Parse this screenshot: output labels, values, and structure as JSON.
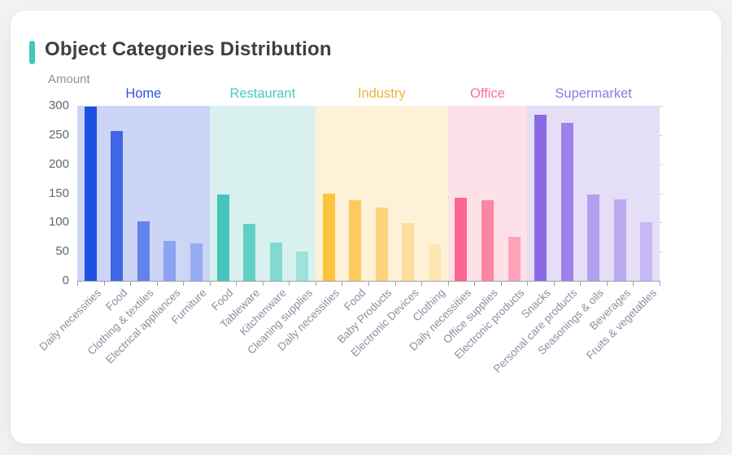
{
  "card": {
    "title": "Object Categories Distribution",
    "accent_color": "#3fc8bc"
  },
  "chart_data": {
    "type": "bar",
    "title": "Object Categories Distribution",
    "xlabel": "",
    "ylabel": "Amount",
    "ylim": [
      0,
      300
    ],
    "yticks": [
      0,
      50,
      100,
      150,
      200,
      250,
      300
    ],
    "grid": false,
    "legend_position": "top-inline-group-headers",
    "axis_color": "#9aa0a6",
    "groups": [
      {
        "label": "Home",
        "label_color": "#2e51e6",
        "band_color": "#ccd5f6",
        "bars": [
          {
            "category": "Daily necessities",
            "value": 298,
            "color": "#1e50e1"
          },
          {
            "category": "Food",
            "value": 257,
            "color": "#3e66e6"
          },
          {
            "category": "Clothing & textiles",
            "value": 102,
            "color": "#6283ec"
          },
          {
            "category": "Electrical appliances",
            "value": 68,
            "color": "#8ba3f0"
          },
          {
            "category": "Furniture",
            "value": 64,
            "color": "#97adf1"
          }
        ]
      },
      {
        "label": "Restaurant",
        "label_color": "#47cbc0",
        "band_color": "#d8f1ef",
        "bars": [
          {
            "category": "Food",
            "value": 148,
            "color": "#45c5bc"
          },
          {
            "category": "Tableware",
            "value": 97,
            "color": "#63cec6"
          },
          {
            "category": "Kitchenware",
            "value": 65,
            "color": "#84d8d2"
          },
          {
            "category": "Cleaning supplies",
            "value": 50,
            "color": "#9de1db"
          }
        ]
      },
      {
        "label": "Industry",
        "label_color": "#ecb43f",
        "band_color": "#fdf2d7",
        "bars": [
          {
            "category": "Daily necessities",
            "value": 150,
            "color": "#fcc33d"
          },
          {
            "category": "Food",
            "value": 138,
            "color": "#fccb5c"
          },
          {
            "category": "Baby Products",
            "value": 126,
            "color": "#fdd47d"
          },
          {
            "category": "Electronic Devices",
            "value": 99,
            "color": "#fdde9c"
          },
          {
            "category": "Clothing",
            "value": 63,
            "color": "#fee6b4"
          }
        ]
      },
      {
        "label": "Office",
        "label_color": "#fb6f98",
        "band_color": "#fde0e8",
        "bars": [
          {
            "category": "Daily necessities",
            "value": 142,
            "color": "#fc6590"
          },
          {
            "category": "Office supplies",
            "value": 138,
            "color": "#fc86a4"
          },
          {
            "category": "Electronic products",
            "value": 75,
            "color": "#fda2b8"
          }
        ]
      },
      {
        "label": "Supermarket",
        "label_color": "#9377e8",
        "band_color": "#e4def6",
        "bars": [
          {
            "category": "Snacks",
            "value": 284,
            "color": "#8a6ae4"
          },
          {
            "category": "Personal care products",
            "value": 271,
            "color": "#9d83e9"
          },
          {
            "category": "Seasonings & oils",
            "value": 148,
            "color": "#b29ff0"
          },
          {
            "category": "Beverages",
            "value": 140,
            "color": "#baa9f1"
          },
          {
            "category": "Fruits & vegetables",
            "value": 101,
            "color": "#c7b9f4"
          }
        ]
      }
    ]
  }
}
